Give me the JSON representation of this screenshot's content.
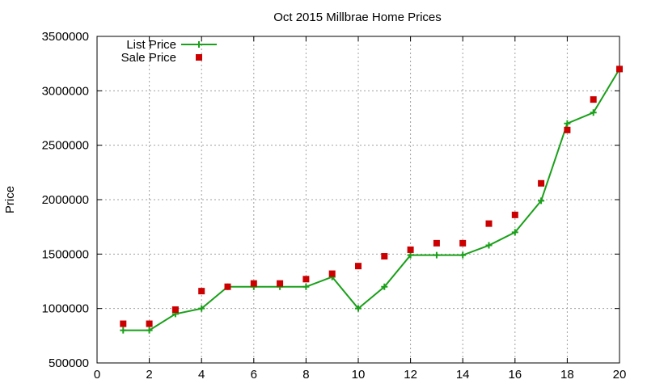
{
  "chart_data": {
    "type": "line",
    "title": "Oct 2015 Millbrae Home Prices",
    "xlabel": "",
    "ylabel": "Price",
    "xlim": [
      0,
      20
    ],
    "ylim": [
      500000,
      3500000
    ],
    "x_ticks": [
      0,
      2,
      4,
      6,
      8,
      10,
      12,
      14,
      16,
      18,
      20
    ],
    "y_ticks": [
      500000,
      1000000,
      1500000,
      2000000,
      2500000,
      3000000,
      3500000
    ],
    "grid": true,
    "legend_position": "top-left",
    "series": [
      {
        "name": "List Price",
        "style": "line+cross",
        "color": "#1aa01a",
        "x": [
          1,
          2,
          3,
          4,
          5,
          6,
          7,
          8,
          9,
          10,
          11,
          12,
          13,
          14,
          15,
          16,
          17,
          18,
          19,
          20
        ],
        "values": [
          800000,
          800000,
          950000,
          1000000,
          1200000,
          1200000,
          1200000,
          1200000,
          1290000,
          1000000,
          1200000,
          1490000,
          1490000,
          1490000,
          1580000,
          1700000,
          1990000,
          2700000,
          2800000,
          3200000
        ]
      },
      {
        "name": "Sale Price",
        "style": "square",
        "color": "#cc0000",
        "x": [
          1,
          2,
          3,
          4,
          5,
          6,
          7,
          8,
          9,
          10,
          11,
          12,
          13,
          14,
          15,
          16,
          17,
          18,
          19,
          20
        ],
        "values": [
          860000,
          860000,
          990000,
          1160000,
          1200000,
          1230000,
          1230000,
          1270000,
          1320000,
          1390000,
          1480000,
          1540000,
          1600000,
          1600000,
          1780000,
          1860000,
          2150000,
          2640000,
          2920000,
          3200000
        ]
      }
    ]
  }
}
